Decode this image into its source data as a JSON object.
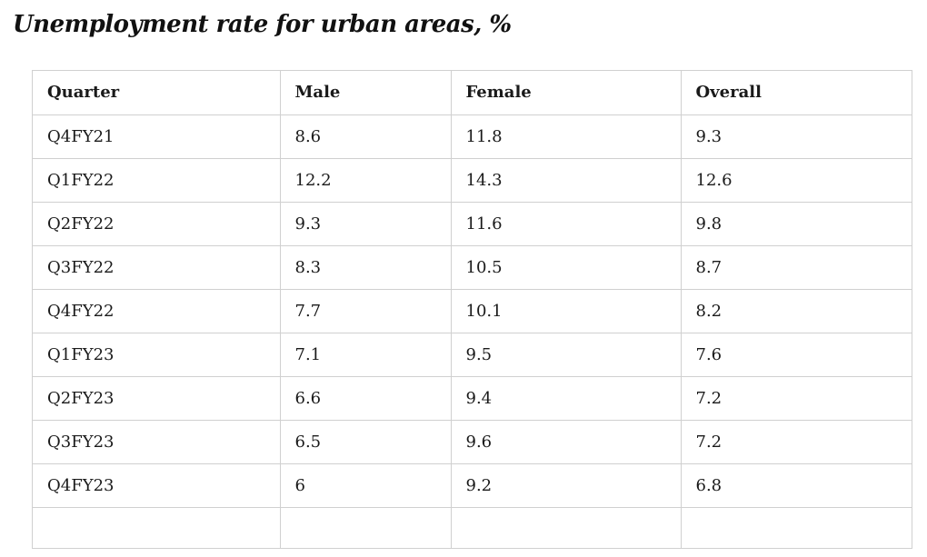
{
  "title": "Unemployment rate for urban areas, %",
  "table": {
    "headers": [
      "Quarter",
      "Male",
      "Female",
      "Overall"
    ],
    "rows": [
      [
        "Q4FY21",
        "8.6",
        "11.8",
        "9.3"
      ],
      [
        "Q1FY22",
        "12.2",
        "14.3",
        "12.6"
      ],
      [
        "Q2FY22",
        "9.3",
        "11.6",
        "9.8"
      ],
      [
        "Q3FY22",
        "8.3",
        "10.5",
        "8.7"
      ],
      [
        "Q4FY22",
        "7.7",
        "10.1",
        "8.2"
      ],
      [
        "Q1FY23",
        "7.1",
        "9.5",
        "7.6"
      ],
      [
        "Q2FY23",
        "6.6",
        "9.4",
        "7.2"
      ],
      [
        "Q3FY23",
        "6.5",
        "9.6",
        "7.2"
      ],
      [
        "Q4FY23",
        "6",
        "9.2",
        "6.8"
      ]
    ]
  }
}
